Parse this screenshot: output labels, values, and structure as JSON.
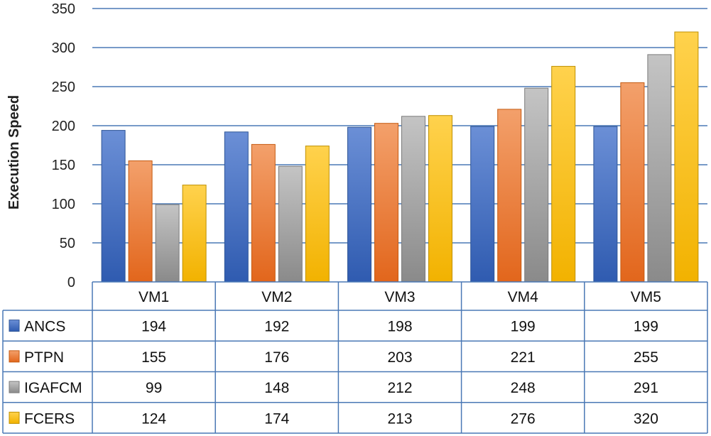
{
  "chart_data": {
    "type": "bar",
    "ylabel": "Execution Speed",
    "ylim": [
      0,
      350
    ],
    "yticks": [
      0,
      50,
      100,
      150,
      200,
      250,
      300,
      350
    ],
    "grid": true,
    "legend": "data-table-below",
    "categories": [
      "VM1",
      "VM2",
      "VM3",
      "VM4",
      "VM5"
    ],
    "series": [
      {
        "name": "ANCS",
        "color": "#4472c4",
        "values": [
          194,
          192,
          198,
          199,
          199
        ]
      },
      {
        "name": "PTPN",
        "color": "#ed7d31",
        "values": [
          155,
          176,
          203,
          221,
          255
        ]
      },
      {
        "name": "IGAFCM",
        "color": "#a5a5a5",
        "values": [
          99,
          148,
          212,
          248,
          291
        ]
      },
      {
        "name": "FCERS",
        "color": "#ffc000",
        "values": [
          124,
          174,
          213,
          276,
          320
        ]
      }
    ]
  }
}
